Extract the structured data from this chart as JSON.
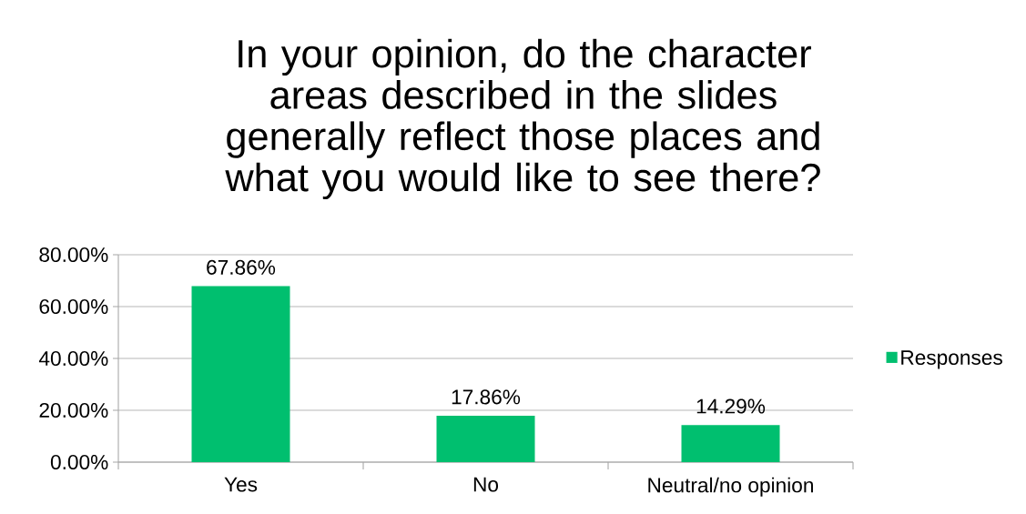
{
  "chart_data": {
    "type": "bar",
    "title": "In your opinion, do the character areas described in the slides generally reflect those places and what you would like to see there?",
    "categories": [
      "Yes",
      "No",
      "Neutral/no opinion"
    ],
    "series": [
      {
        "name": "Responses",
        "color": "#00bf6f",
        "values": [
          67.86,
          17.86,
          14.29
        ],
        "value_labels": [
          "67.86%",
          "17.86%",
          "14.29%"
        ]
      }
    ],
    "ylim": [
      0,
      80
    ],
    "yticks": [
      {
        "value": 0,
        "label": "0.00%"
      },
      {
        "value": 20,
        "label": "20.00%"
      },
      {
        "value": 40,
        "label": "40.00%"
      },
      {
        "value": 60,
        "label": "60.00%"
      },
      {
        "value": 80,
        "label": "80.00%"
      }
    ],
    "grid": "y",
    "legend": "right"
  }
}
